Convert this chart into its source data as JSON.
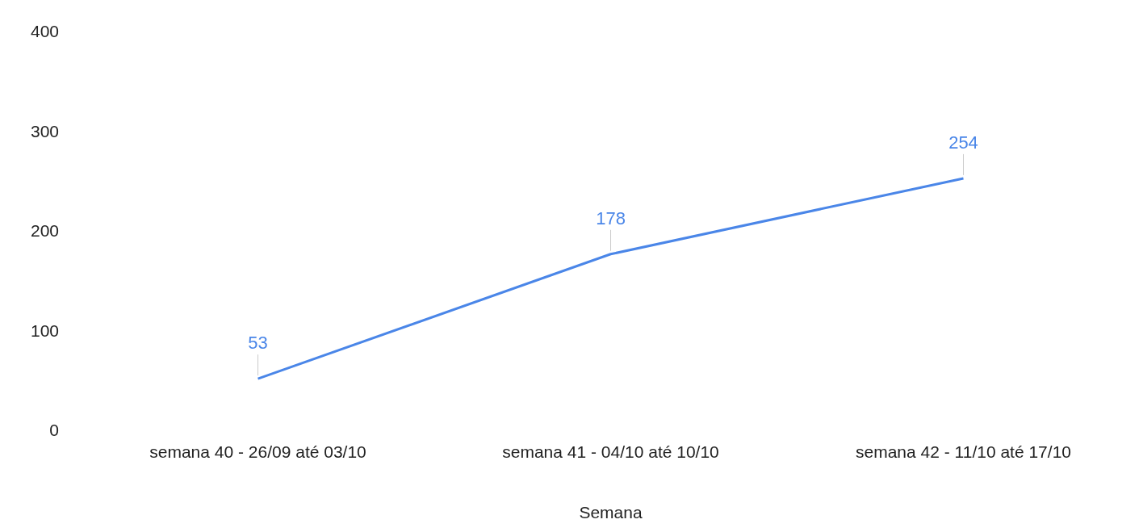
{
  "chart_data": {
    "type": "line",
    "xlabel": "Semana",
    "categories": [
      "semana 40 - 26/09 até 03/10",
      "semana 41 - 04/10 até 10/10",
      "semana 42 - 11/10 até 17/10"
    ],
    "series": [
      {
        "color": "#4a86e8",
        "values": [
          53,
          178,
          254
        ]
      }
    ],
    "ylim": [
      0,
      400
    ],
    "yticks": [
      0,
      100,
      200,
      300,
      400
    ],
    "grid": false,
    "legend": false,
    "marker": "none",
    "line_style": "solid",
    "data_labels": true
  }
}
